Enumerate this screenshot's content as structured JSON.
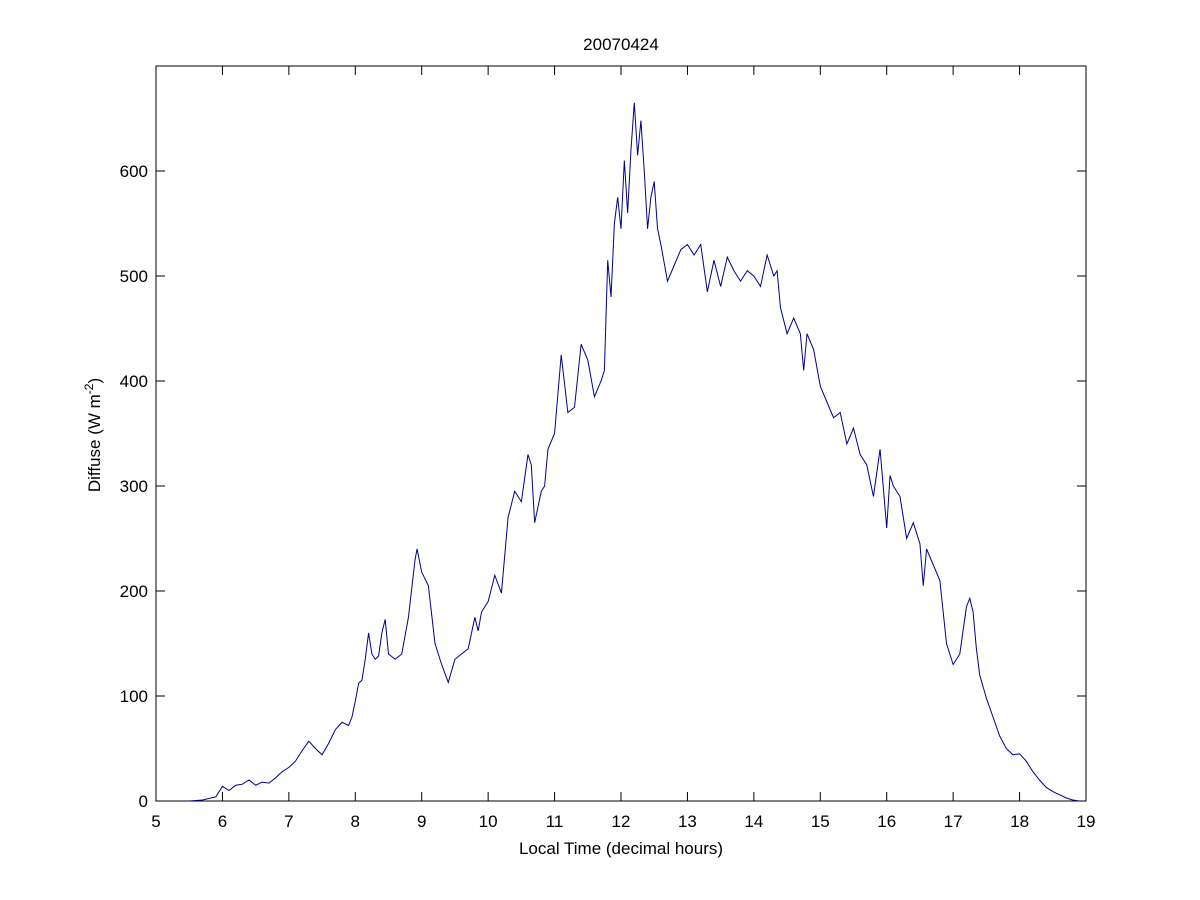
{
  "chart_data": {
    "type": "line",
    "title": "20070424",
    "xlabel": "Local Time (decimal hours)",
    "ylabel": {
      "text": "Diffuse (W m",
      "superscript": "-2",
      "suffix": ")"
    },
    "color": "#00008b",
    "xlim": [
      5,
      19
    ],
    "xticks": [
      5,
      6,
      7,
      8,
      9,
      10,
      11,
      12,
      13,
      14,
      15,
      16,
      17,
      18,
      19
    ],
    "ylim": [
      0,
      700
    ],
    "yticks": [
      0,
      100,
      200,
      300,
      400,
      500,
      600
    ],
    "x": [
      5.5,
      5.7,
      5.9,
      6.0,
      6.1,
      6.2,
      6.3,
      6.4,
      6.5,
      6.6,
      6.7,
      6.8,
      6.9,
      7.0,
      7.1,
      7.2,
      7.3,
      7.4,
      7.5,
      7.6,
      7.7,
      7.8,
      7.9,
      7.95,
      8.0,
      8.05,
      8.1,
      8.15,
      8.2,
      8.25,
      8.3,
      8.35,
      8.4,
      8.45,
      8.5,
      8.6,
      8.7,
      8.8,
      8.9,
      8.93,
      9.0,
      9.1,
      9.2,
      9.3,
      9.4,
      9.5,
      9.6,
      9.7,
      9.8,
      9.85,
      9.9,
      10.0,
      10.1,
      10.2,
      10.3,
      10.4,
      10.5,
      10.6,
      10.65,
      10.7,
      10.8,
      10.85,
      10.9,
      11.0,
      11.1,
      11.2,
      11.3,
      11.4,
      11.5,
      11.6,
      11.7,
      11.75,
      11.8,
      11.85,
      11.9,
      11.95,
      12.0,
      12.05,
      12.1,
      12.15,
      12.2,
      12.25,
      12.3,
      12.35,
      12.4,
      12.45,
      12.5,
      12.55,
      12.6,
      12.7,
      12.8,
      12.9,
      13.0,
      13.1,
      13.2,
      13.3,
      13.4,
      13.5,
      13.6,
      13.7,
      13.8,
      13.9,
      14.0,
      14.1,
      14.2,
      14.3,
      14.35,
      14.4,
      14.5,
      14.6,
      14.7,
      14.75,
      14.8,
      14.9,
      15.0,
      15.1,
      15.2,
      15.3,
      15.4,
      15.5,
      15.6,
      15.7,
      15.8,
      15.9,
      16.0,
      16.05,
      16.1,
      16.2,
      16.3,
      16.4,
      16.5,
      16.55,
      16.6,
      16.7,
      16.8,
      16.9,
      17.0,
      17.1,
      17.2,
      17.25,
      17.3,
      17.35,
      17.4,
      17.5,
      17.6,
      17.7,
      17.8,
      17.9,
      18.0,
      18.1,
      18.2,
      18.3,
      18.4,
      18.5,
      18.6,
      18.7,
      18.8,
      18.9
    ],
    "values": [
      0,
      1,
      4,
      14,
      10,
      15,
      16,
      20,
      15,
      18,
      17,
      22,
      28,
      32,
      38,
      48,
      57,
      50,
      44,
      55,
      68,
      75,
      72,
      80,
      95,
      112,
      115,
      135,
      160,
      140,
      135,
      138,
      160,
      173,
      140,
      135,
      140,
      175,
      230,
      240,
      218,
      205,
      150,
      130,
      113,
      135,
      140,
      145,
      175,
      162,
      180,
      190,
      215,
      198,
      270,
      295,
      285,
      330,
      320,
      265,
      295,
      300,
      335,
      350,
      425,
      370,
      375,
      435,
      420,
      385,
      400,
      410,
      515,
      480,
      550,
      575,
      545,
      610,
      560,
      620,
      665,
      615,
      648,
      600,
      545,
      575,
      590,
      545,
      530,
      495,
      510,
      525,
      530,
      520,
      530,
      485,
      515,
      490,
      518,
      505,
      495,
      505,
      500,
      490,
      520,
      500,
      505,
      470,
      445,
      460,
      445,
      410,
      445,
      430,
      395,
      380,
      365,
      370,
      340,
      355,
      330,
      320,
      290,
      335,
      260,
      310,
      300,
      290,
      250,
      265,
      245,
      205,
      240,
      225,
      210,
      150,
      130,
      140,
      185,
      193,
      180,
      145,
      120,
      98,
      80,
      62,
      50,
      44,
      45,
      38,
      28,
      20,
      13,
      9,
      6,
      3,
      1,
      0
    ]
  }
}
